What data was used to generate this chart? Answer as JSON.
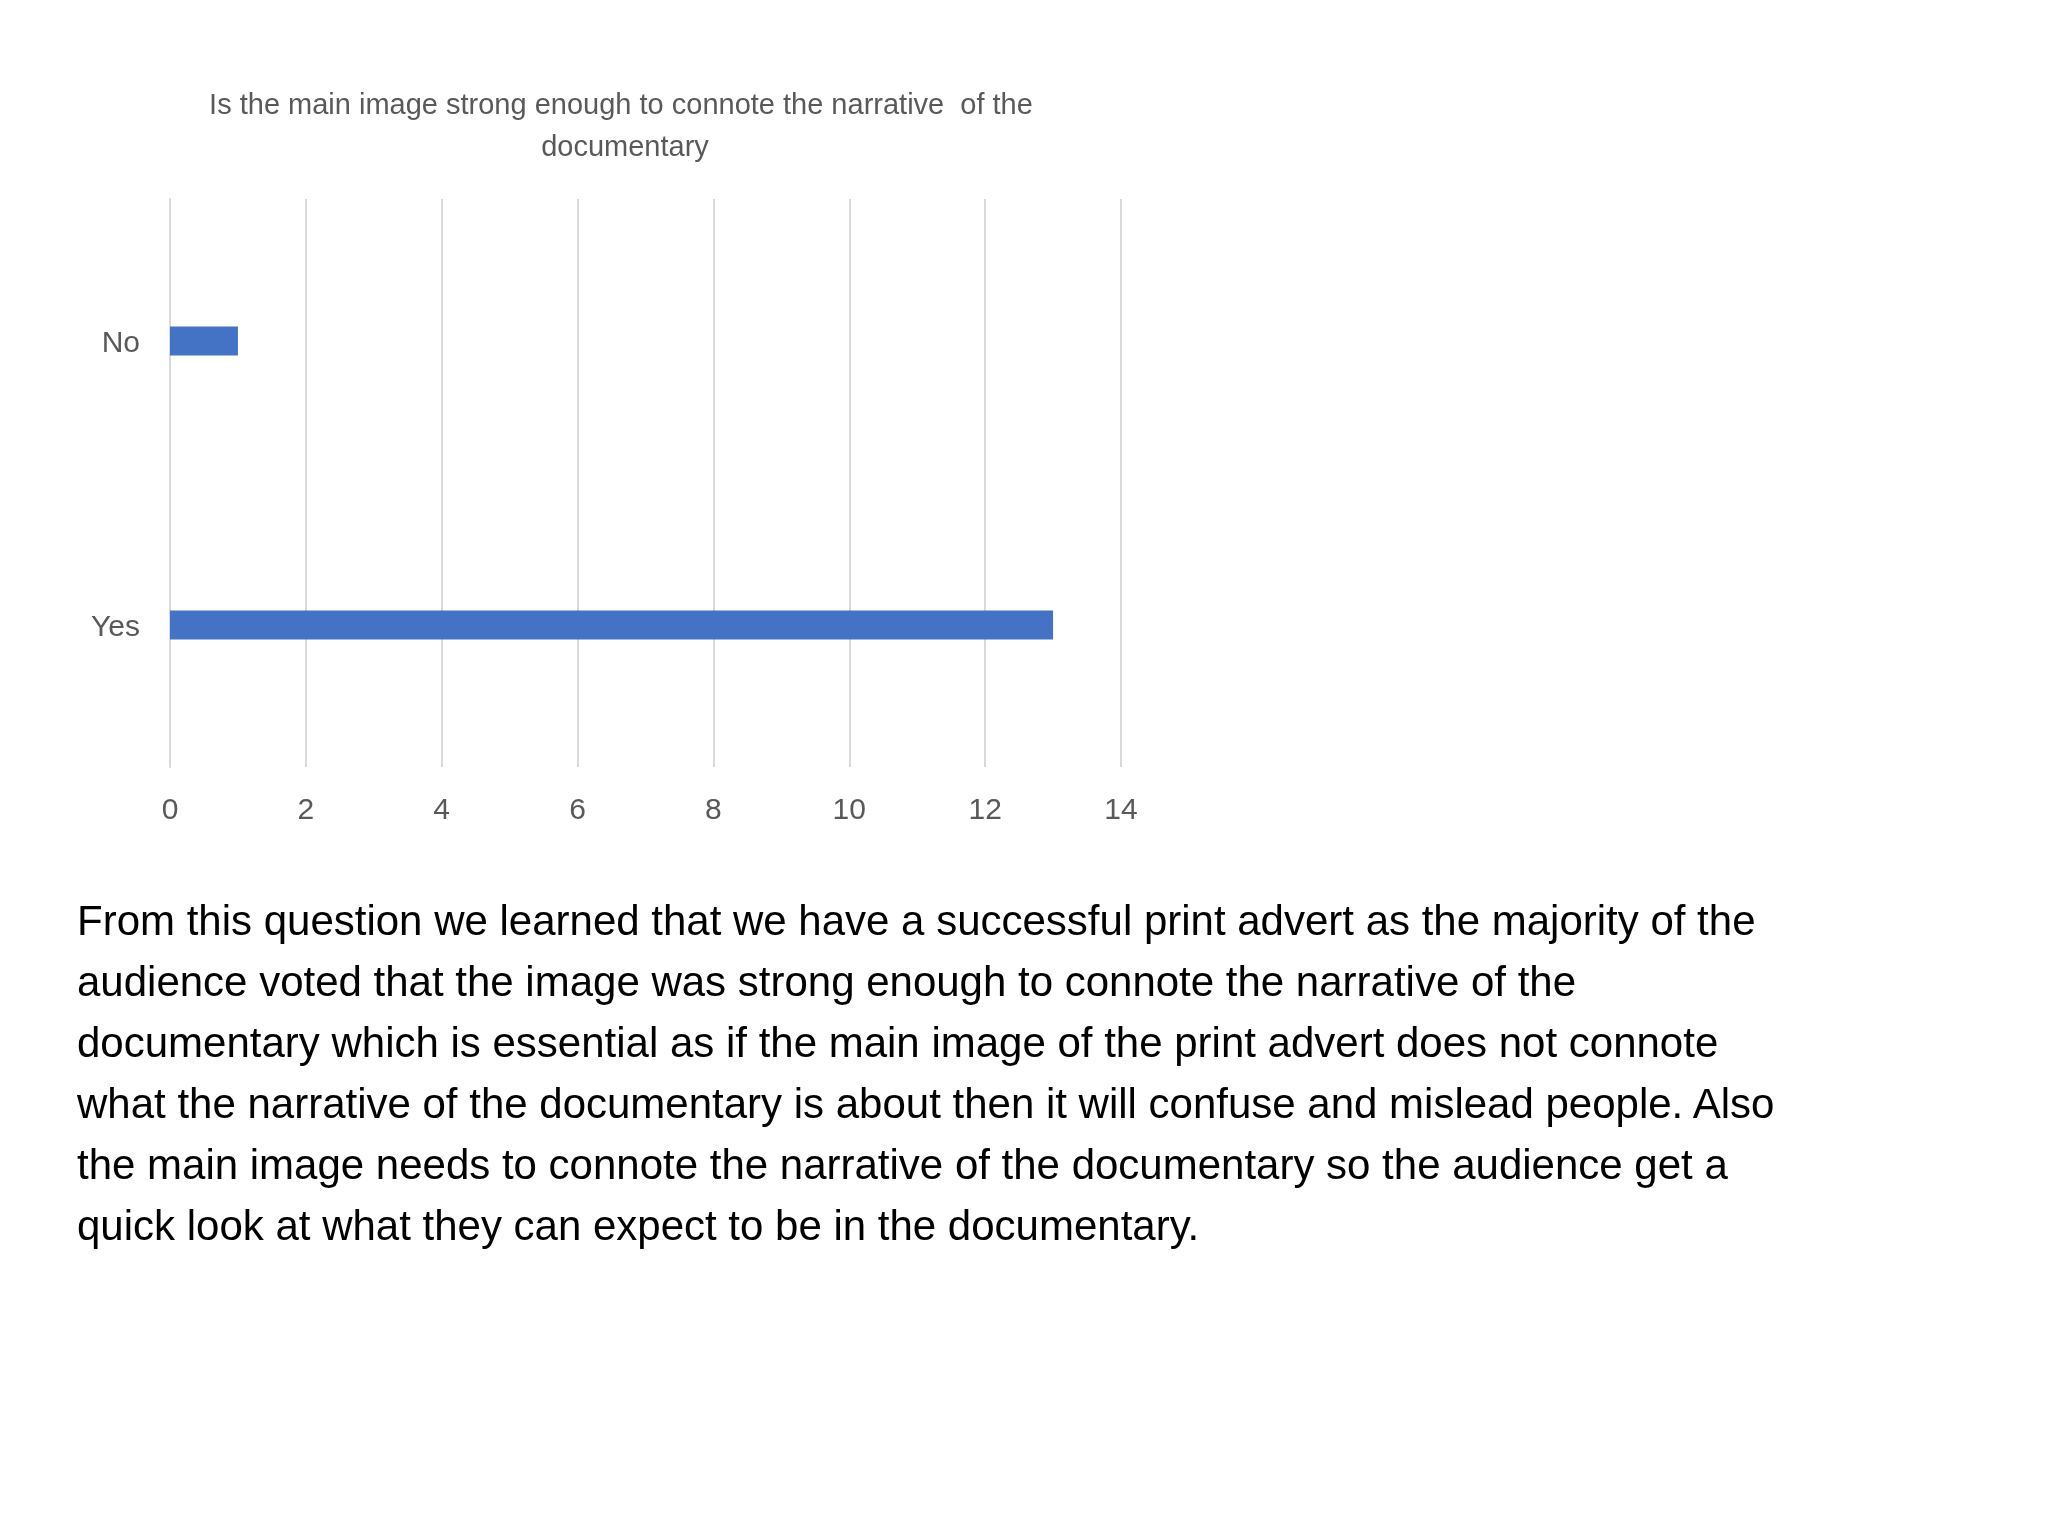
{
  "chart_data": {
    "type": "bar",
    "orientation": "horizontal",
    "title": "Is the main image strong enough to connote the narrative  of the documentary",
    "categories": [
      "No",
      "Yes"
    ],
    "values": [
      1,
      13
    ],
    "color": "#4472c4",
    "xlim": [
      0,
      14
    ],
    "xticks": [
      0,
      2,
      4,
      6,
      8,
      10,
      12,
      14
    ],
    "grid": "x",
    "annotations": [
      "From this question we learned that we have a successful print advert as the majority of the audience voted that the image was strong enough to connote the narrative of the documentary which is essential as if the main image of the print advert does not connote what the narrative of the documentary is about then it will confuse and mislead people. Also the main image needs to connote the narrative of the documentary so the audience get a quick look at what they can expect to be in the documentary."
    ]
  }
}
